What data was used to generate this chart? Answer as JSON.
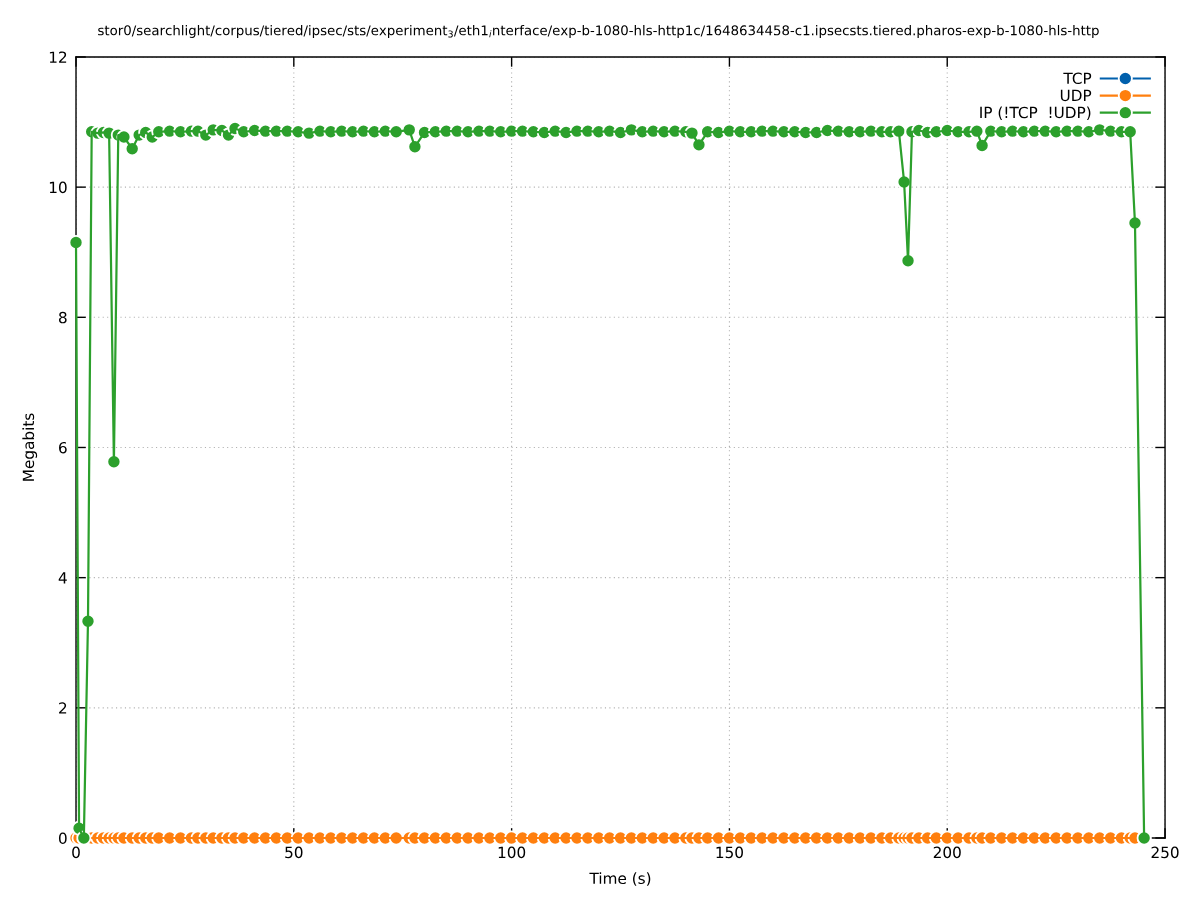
{
  "chart_data": {
    "type": "line",
    "title": "stor0/searchlight/corpus/tiered/ipsec/sts/experiment$_{3}$/eth1$_{i}$nterface/exp-b-1080-hls-http1c/1648634458-c1.ipsecsts.tiered.pharos-exp-b-1080-hls-http",
    "xlabel": "Time (s)",
    "ylabel": "Megabits",
    "x": [
      0,
      0.7,
      1.8,
      2.75,
      3.6,
      5.0,
      6.3,
      7.6,
      8.7,
      9.7,
      11.0,
      12.9,
      14.5,
      16.0,
      17.5,
      19.0,
      21.5,
      24.0,
      26.5,
      28.0,
      29.8,
      31.5,
      33.5,
      35.0,
      36.5,
      38.5,
      41.0,
      43.5,
      46.0,
      48.5,
      51.0,
      53.5,
      56.0,
      58.5,
      61.0,
      63.5,
      66.0,
      68.5,
      71.0,
      73.5,
      76.5,
      77.8,
      80.0,
      82.5,
      85.0,
      87.5,
      90.0,
      92.5,
      95.0,
      97.5,
      100.0,
      102.5,
      105.0,
      107.5,
      110.0,
      112.5,
      115.0,
      117.5,
      120.0,
      122.5,
      125.0,
      127.5,
      130.0,
      132.5,
      135.0,
      137.5,
      140.0,
      141.4,
      143.0,
      145.0,
      147.5,
      150.0,
      152.5,
      155.0,
      157.5,
      160.0,
      162.5,
      165.0,
      167.5,
      170.0,
      172.5,
      175.0,
      177.5,
      180.0,
      182.5,
      185.0,
      187.0,
      188.9,
      190.1,
      191.0,
      191.9,
      193.5,
      195.5,
      197.5,
      200.0,
      202.5,
      205.0,
      206.8,
      208.0,
      210.0,
      212.5,
      215.0,
      217.5,
      220.0,
      222.5,
      225.0,
      227.5,
      230.0,
      232.5,
      235.0,
      237.5,
      240.0,
      242.0,
      243.1,
      245.2
    ],
    "series": [
      {
        "name": "TCP",
        "color": "#0060ad",
        "values": [
          null,
          null,
          null,
          null,
          null,
          null,
          null,
          null,
          null,
          null,
          null,
          null,
          null,
          null,
          null,
          null,
          null,
          null,
          null,
          null,
          null,
          null,
          null,
          null,
          null,
          null,
          null,
          null,
          null,
          null,
          null,
          null,
          null,
          null,
          null,
          null,
          null,
          null,
          null,
          null,
          null,
          null,
          null,
          null,
          null,
          null,
          null,
          null,
          null,
          null,
          null,
          null,
          null,
          null,
          null,
          null,
          null,
          null,
          null,
          null,
          null,
          null,
          null,
          null,
          null,
          null,
          null,
          null,
          null,
          null,
          null,
          null,
          null,
          null,
          null,
          null,
          null,
          null,
          null,
          null,
          null,
          null,
          null,
          null,
          null,
          null,
          null,
          null,
          null,
          null,
          null,
          null,
          null,
          null,
          null,
          null,
          null,
          null,
          null,
          null,
          null,
          null,
          null,
          null,
          null,
          null,
          null,
          null,
          null,
          null,
          null,
          null,
          null,
          null,
          null
        ]
      },
      {
        "name": "UDP",
        "color": "#ff7f0e",
        "values": [
          0,
          0,
          0,
          0,
          0,
          0,
          0,
          0,
          0,
          0,
          0,
          0,
          0,
          0,
          0,
          0,
          0,
          0,
          0,
          0,
          0,
          0,
          0,
          0,
          0,
          0,
          0,
          0,
          0,
          0,
          0,
          0,
          0,
          0,
          0,
          0,
          0,
          0,
          0,
          0,
          0,
          0,
          0,
          0,
          0,
          0,
          0,
          0,
          0,
          0,
          0,
          0,
          0,
          0,
          0,
          0,
          0,
          0,
          0,
          0,
          0,
          0,
          0,
          0,
          0,
          0,
          0,
          0,
          0,
          0,
          0,
          0,
          0,
          0,
          0,
          0,
          0,
          0,
          0,
          0,
          0,
          0,
          0,
          0,
          0,
          0,
          0,
          0,
          0,
          0,
          0,
          0,
          0,
          0,
          0,
          0,
          0,
          0,
          0,
          0,
          0,
          0,
          0,
          0,
          0,
          0,
          0,
          0,
          0,
          0,
          0,
          0,
          0,
          0,
          0
        ]
      },
      {
        "name": "IP (!TCP  !UDP)",
        "color": "#2ca02c",
        "values": [
          9.15,
          0.15,
          0,
          3.33,
          10.85,
          10.83,
          10.84,
          10.83,
          5.78,
          10.8,
          10.77,
          10.59,
          10.8,
          10.84,
          10.77,
          10.85,
          10.86,
          10.85,
          10.86,
          10.86,
          10.8,
          10.88,
          10.87,
          10.8,
          10.9,
          10.85,
          10.87,
          10.86,
          10.86,
          10.86,
          10.85,
          10.83,
          10.86,
          10.85,
          10.86,
          10.85,
          10.86,
          10.85,
          10.86,
          10.85,
          10.88,
          10.62,
          10.84,
          10.85,
          10.86,
          10.86,
          10.85,
          10.86,
          10.86,
          10.85,
          10.86,
          10.86,
          10.85,
          10.84,
          10.86,
          10.84,
          10.86,
          10.86,
          10.85,
          10.86,
          10.84,
          10.88,
          10.85,
          10.86,
          10.85,
          10.86,
          10.85,
          10.83,
          10.65,
          10.85,
          10.84,
          10.86,
          10.85,
          10.85,
          10.86,
          10.86,
          10.85,
          10.85,
          10.84,
          10.84,
          10.87,
          10.86,
          10.85,
          10.85,
          10.86,
          10.85,
          10.85,
          10.86,
          10.08,
          8.87,
          10.85,
          10.87,
          10.84,
          10.85,
          10.87,
          10.85,
          10.85,
          10.86,
          10.64,
          10.86,
          10.85,
          10.86,
          10.85,
          10.86,
          10.86,
          10.85,
          10.86,
          10.86,
          10.85,
          10.88,
          10.86,
          10.85,
          10.85,
          9.45,
          0
        ]
      }
    ],
    "xlim": [
      0,
      250
    ],
    "ylim": [
      0,
      12
    ],
    "xticks": [
      0,
      50,
      100,
      150,
      200,
      250
    ],
    "yticks": [
      0,
      2,
      4,
      6,
      8,
      10,
      12
    ],
    "grid": true,
    "legend": "top right",
    "marker": "circle",
    "line_style": "solid"
  }
}
